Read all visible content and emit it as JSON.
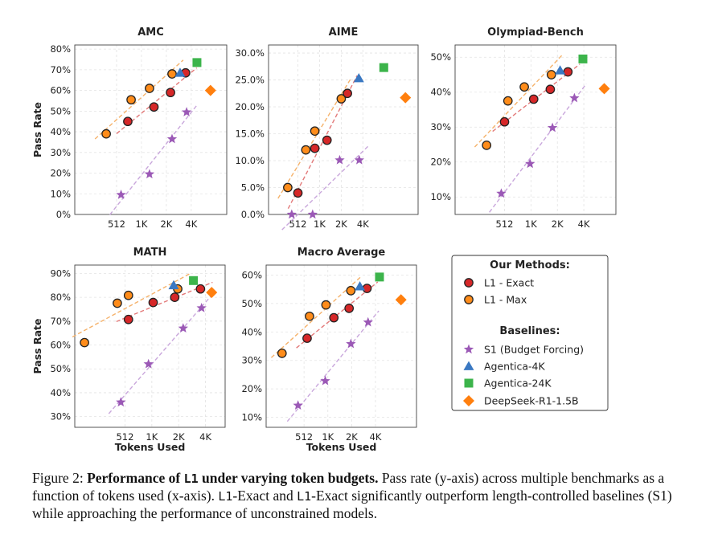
{
  "caption": {
    "label": "Figure 2:",
    "title_pre": "Performance of ",
    "title_code": "L1",
    "title_post": " under varying token budgets.",
    "text_1": " Pass rate (y-axis) across multiple benchmarks as a function of tokens used (x-axis). ",
    "code_1": "L1",
    "text_2": "-Exact and ",
    "code_2": "L1",
    "text_3": "-Exact significantly outperform length-controlled baselines (S1) while approaching the performance of unconstrained models."
  },
  "legend": {
    "our_title": "Our Methods:",
    "baselines_title": "Baselines:",
    "items": [
      {
        "name": "L1 - Exact",
        "marker": "circle",
        "color": "#d62728"
      },
      {
        "name": "L1 - Max",
        "marker": "circle",
        "color": "#ff8c1a"
      },
      {
        "name": "S1 (Budget Forcing)",
        "marker": "star",
        "color": "#9b59b6"
      },
      {
        "name": "Agentica-4K",
        "marker": "triangle",
        "color": "#3a78c2"
      },
      {
        "name": "Agentica-24K",
        "marker": "square",
        "color": "#3cb44b"
      },
      {
        "name": "DeepSeek-R1-1.5B",
        "marker": "diamond",
        "color": "#ff7f0e"
      }
    ]
  },
  "chart_data": [
    {
      "type": "scatter",
      "title": "AMC",
      "xlabel": "",
      "ylabel": "Pass Rate",
      "x_ticks": [
        "512",
        "1K",
        "2K",
        "4K"
      ],
      "ylim": [
        0,
        0.82
      ],
      "y_ticks": [
        "0%",
        "10%",
        "20%",
        "30%",
        "40%",
        "50%",
        "60%",
        "70%",
        "80%"
      ],
      "series": [
        {
          "name": "L1 - Max",
          "points": [
            [
              384,
              0.39
            ],
            [
              768,
              0.555
            ],
            [
              1280,
              0.61
            ],
            [
              2400,
              0.68
            ]
          ]
        },
        {
          "name": "L1 - Exact",
          "points": [
            [
              700,
              0.45
            ],
            [
              1450,
              0.52
            ],
            [
              2300,
              0.59
            ],
            [
              3500,
              0.685
            ]
          ]
        },
        {
          "name": "S1 (Budget Forcing)",
          "points": [
            [
              580,
              0.095
            ],
            [
              1280,
              0.195
            ],
            [
              2400,
              0.365
            ],
            [
              3600,
              0.495
            ]
          ]
        },
        {
          "name": "Agentica-4K",
          "points": [
            [
              3000,
              0.685
            ]
          ]
        },
        {
          "name": "Agentica-24K",
          "points": [
            [
              4800,
              0.735
            ]
          ]
        },
        {
          "name": "DeepSeek-R1-1.5B",
          "points": [
            [
              7000,
              0.6
            ]
          ]
        }
      ]
    },
    {
      "type": "scatter",
      "title": "AIME",
      "xlabel": "",
      "ylabel": "",
      "x_ticks": [
        "512",
        "1K",
        "2K",
        "4K"
      ],
      "ylim": [
        0,
        0.315
      ],
      "y_ticks": [
        "0.0%",
        "5.0%",
        "10.0%",
        "15.0%",
        "20.0%",
        "25.0%",
        "30.0%"
      ],
      "series": [
        {
          "name": "L1 - Max",
          "points": [
            [
              370,
              0.05
            ],
            [
              660,
              0.12
            ],
            [
              880,
              0.155
            ],
            [
              2050,
              0.215
            ]
          ]
        },
        {
          "name": "L1 - Exact",
          "points": [
            [
              512,
              0.04
            ],
            [
              880,
              0.123
            ],
            [
              1300,
              0.138
            ],
            [
              2500,
              0.225
            ]
          ]
        },
        {
          "name": "S1 (Budget Forcing)",
          "points": [
            [
              420,
              0.0
            ],
            [
              820,
              0.0
            ],
            [
              1950,
              0.101
            ],
            [
              3650,
              0.101
            ]
          ]
        },
        {
          "name": "Agentica-4K",
          "points": [
            [
              3600,
              0.253
            ]
          ]
        },
        {
          "name": "Agentica-24K",
          "points": [
            [
              8000,
              0.273
            ]
          ]
        },
        {
          "name": "DeepSeek-R1-1.5B",
          "points": [
            [
              16000,
              0.217
            ]
          ]
        }
      ]
    },
    {
      "type": "scatter",
      "title": "Olympiad-Bench",
      "xlabel": "",
      "ylabel": "",
      "x_ticks": [
        "512",
        "1K",
        "2K",
        "4K"
      ],
      "ylim": [
        0.05,
        0.535
      ],
      "y_ticks": [
        "10%",
        "20%",
        "30%",
        "40%",
        "50%"
      ],
      "series": [
        {
          "name": "L1 - Max",
          "points": [
            [
              320,
              0.248
            ],
            [
              560,
              0.375
            ],
            [
              860,
              0.415
            ],
            [
              1750,
              0.45
            ]
          ]
        },
        {
          "name": "L1 - Exact",
          "points": [
            [
              512,
              0.315
            ],
            [
              1100,
              0.38
            ],
            [
              1700,
              0.408
            ],
            [
              2700,
              0.458
            ]
          ]
        },
        {
          "name": "S1 (Budget Forcing)",
          "points": [
            [
              470,
              0.11
            ],
            [
              1000,
              0.195
            ],
            [
              1800,
              0.298
            ],
            [
              3200,
              0.383
            ]
          ]
        },
        {
          "name": "Agentica-4K",
          "points": [
            [
              2200,
              0.462
            ]
          ]
        },
        {
          "name": "Agentica-24K",
          "points": [
            [
              4000,
              0.495
            ]
          ]
        },
        {
          "name": "DeepSeek-R1-1.5B",
          "points": [
            [
              7000,
              0.41
            ]
          ]
        }
      ]
    },
    {
      "type": "scatter",
      "title": "MATH",
      "xlabel": "Tokens Used",
      "ylabel": "Pass Rate",
      "x_ticks": [
        "512",
        "1K",
        "2K",
        "4K"
      ],
      "ylim": [
        0.255,
        0.935
      ],
      "y_ticks": [
        "30%",
        "40%",
        "50%",
        "60%",
        "70%",
        "80%",
        "90%"
      ],
      "series": [
        {
          "name": "L1 - Max",
          "points": [
            [
              180,
              0.61
            ],
            [
              420,
              0.775
            ],
            [
              560,
              0.808
            ],
            [
              2000,
              0.835
            ]
          ]
        },
        {
          "name": "L1 - Exact",
          "points": [
            [
              560,
              0.707
            ],
            [
              1060,
              0.778
            ],
            [
              1850,
              0.8
            ],
            [
              3600,
              0.835
            ]
          ]
        },
        {
          "name": "S1 (Budget Forcing)",
          "points": [
            [
              460,
              0.36
            ],
            [
              940,
              0.52
            ],
            [
              2300,
              0.67
            ],
            [
              3700,
              0.755
            ]
          ]
        },
        {
          "name": "Agentica-4K",
          "points": [
            [
              1800,
              0.85
            ]
          ]
        },
        {
          "name": "Agentica-24K",
          "points": [
            [
              3000,
              0.87
            ]
          ]
        },
        {
          "name": "DeepSeek-R1-1.5B",
          "points": [
            [
              4800,
              0.82
            ]
          ]
        }
      ]
    },
    {
      "type": "scatter",
      "title": "Macro Average",
      "xlabel": "Tokens Used",
      "ylabel": "",
      "x_ticks": [
        "512",
        "1K",
        "2K",
        "4K"
      ],
      "ylim": [
        0.065,
        0.635
      ],
      "y_ticks": [
        "10%",
        "20%",
        "30%",
        "40%",
        "50%",
        "60%"
      ],
      "series": [
        {
          "name": "L1 - Max",
          "points": [
            [
              270,
              0.325
            ],
            [
              600,
              0.455
            ],
            [
              970,
              0.495
            ],
            [
              2000,
              0.545
            ]
          ]
        },
        {
          "name": "L1 - Exact",
          "points": [
            [
              560,
              0.378
            ],
            [
              1220,
              0.45
            ],
            [
              1900,
              0.483
            ],
            [
              3200,
              0.553
            ]
          ]
        },
        {
          "name": "S1 (Budget Forcing)",
          "points": [
            [
              430,
              0.142
            ],
            [
              950,
              0.228
            ],
            [
              2000,
              0.358
            ],
            [
              3300,
              0.434
            ]
          ]
        },
        {
          "name": "Agentica-4K",
          "points": [
            [
              2600,
              0.56
            ]
          ]
        },
        {
          "name": "Agentica-24K",
          "points": [
            [
              4600,
              0.593
            ]
          ]
        },
        {
          "name": "DeepSeek-R1-1.5B",
          "points": [
            [
              8600,
              0.513
            ]
          ]
        }
      ]
    }
  ]
}
